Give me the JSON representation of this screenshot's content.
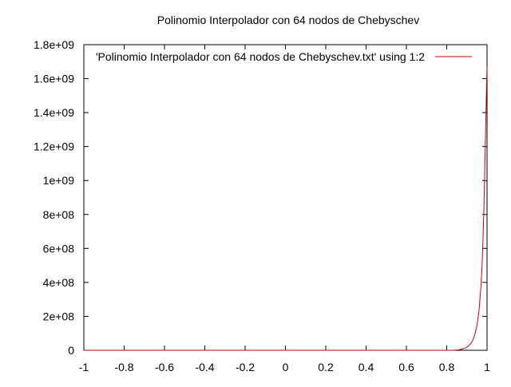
{
  "chart_data": {
    "type": "line",
    "title": "Polinomio Interpolador con 64 nodos de Chebyschev",
    "xlabel": "",
    "ylabel": "",
    "xlim": [
      -1,
      1
    ],
    "ylim": [
      0,
      1800000000
    ],
    "x_ticks": [
      -1,
      -0.8,
      -0.6,
      -0.4,
      -0.2,
      0,
      0.2,
      0.4,
      0.6,
      0.8,
      1
    ],
    "x_tick_labels": [
      "-1",
      "-0.8",
      "-0.6",
      "-0.4",
      "-0.2",
      "0",
      "0.2",
      "0.4",
      "0.6",
      "0.8",
      "1"
    ],
    "y_ticks": [
      0,
      200000000,
      400000000,
      600000000,
      800000000,
      1000000000,
      1200000000,
      1400000000,
      1600000000,
      1800000000
    ],
    "y_tick_labels": [
      "0",
      "2e+08",
      "4e+08",
      "6e+08",
      "8e+08",
      "1e+09",
      "1.2e+09",
      "1.4e+09",
      "1.6e+09",
      "1.8e+09"
    ],
    "grid": false,
    "legend_position": "top-right",
    "series": [
      {
        "name": "'Polinomio Interpolador con 64 nodos de Chebyschev.txt' using 1:2",
        "color": "#cc0000",
        "x": [
          -1,
          0.82,
          0.84,
          0.86,
          0.88,
          0.9,
          0.92,
          0.93,
          0.94,
          0.95,
          0.96,
          0.97,
          0.975,
          0.98,
          0.985,
          0.99,
          0.995,
          1.0
        ],
        "y": [
          0,
          0,
          500000,
          3000000,
          8000000,
          18000000,
          40000000,
          62000000,
          95000000,
          145000000,
          230000000,
          380000000,
          490000000,
          650000000,
          860000000,
          1130000000,
          1420000000,
          1670000000
        ]
      }
    ]
  }
}
